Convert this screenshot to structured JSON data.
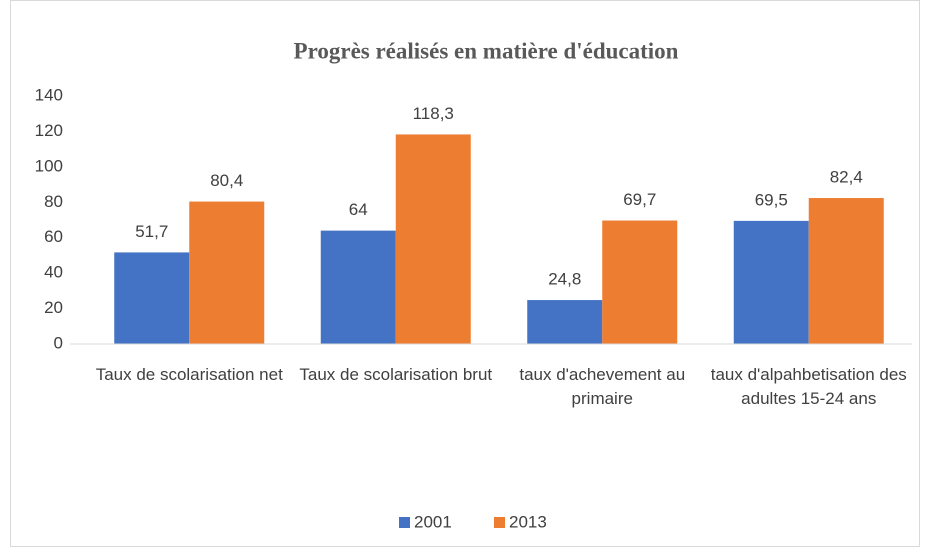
{
  "chart_data": {
    "type": "bar",
    "title": "Progrès réalisés en matière d'éducation",
    "categories": [
      "Taux de scolarisation net",
      "Taux de scolarisation brut",
      "taux d'achevement au primaire",
      "taux d'alpahbetisation des adultes 15-24 ans"
    ],
    "series": [
      {
        "name": "2001",
        "color": "#4472c4",
        "values": [
          51.7,
          64,
          24.8,
          69.5
        ],
        "value_labels": [
          "51,7",
          "64",
          "24,8",
          "69,5"
        ]
      },
      {
        "name": "2013",
        "color": "#ed7d31",
        "values": [
          80.4,
          118.3,
          69.7,
          82.4
        ],
        "value_labels": [
          "80,4",
          "118,3",
          "69,7",
          "82,4"
        ]
      }
    ],
    "ylim": [
      0,
      140
    ],
    "yticks": [
      0,
      20,
      40,
      60,
      80,
      100,
      120,
      140
    ],
    "grid": false,
    "legend": "bottom"
  }
}
